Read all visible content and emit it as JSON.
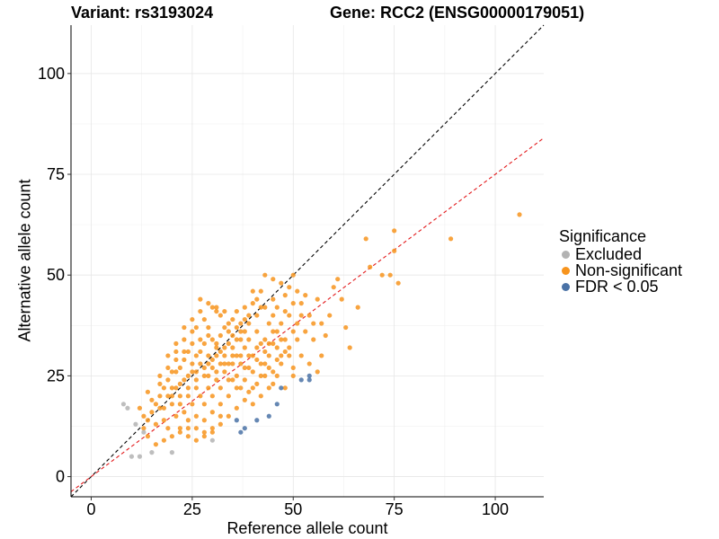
{
  "header": {
    "variant": "Variant: rs3193024",
    "gene": "Gene: RCC2 (ENSG00000179051)"
  },
  "legend": {
    "title": "Significance",
    "items": [
      {
        "label": "Excluded",
        "color": "#b3b3b3"
      },
      {
        "label": "Non-significant",
        "color": "#f7941d"
      },
      {
        "label": "FDR < 0.05",
        "color": "#4a72a6"
      }
    ]
  },
  "chart_data": {
    "type": "scatter",
    "xlabel": "Reference allele count",
    "ylabel": "Alternative allele count",
    "xlim": [
      -5,
      112
    ],
    "ylim": [
      -5,
      112
    ],
    "xticks": [
      0,
      25,
      50,
      75,
      100
    ],
    "yticks": [
      0,
      25,
      50,
      75,
      100
    ],
    "grid": true,
    "legend_position": "right",
    "reference_lines": [
      {
        "kind": "identity",
        "slope": 1,
        "intercept": 0,
        "color": "#000000",
        "style": "dashed"
      },
      {
        "kind": "fit",
        "slope": 0.75,
        "intercept": 0,
        "color": "#e31a1c",
        "style": "dashed"
      }
    ],
    "series": [
      {
        "name": "Excluded",
        "color": "#b3b3b3",
        "points": [
          [
            8,
            18
          ],
          [
            9,
            17
          ],
          [
            10,
            5
          ],
          [
            12,
            5
          ],
          [
            15,
            6
          ],
          [
            20,
            6
          ],
          [
            30,
            9
          ],
          [
            13,
            11
          ],
          [
            11,
            13
          ]
        ]
      },
      {
        "name": "FDR < 0.05",
        "color": "#4a72a6",
        "points": [
          [
            36,
            14
          ],
          [
            37,
            11
          ],
          [
            38,
            12
          ],
          [
            41,
            14
          ],
          [
            44,
            15
          ],
          [
            46,
            18
          ],
          [
            52,
            24
          ],
          [
            54,
            24
          ],
          [
            54,
            25
          ],
          [
            47,
            22
          ]
        ]
      },
      {
        "name": "Non-significant",
        "color": "#f7941d",
        "points": [
          [
            106,
            65
          ],
          [
            89,
            59
          ],
          [
            75,
            61
          ],
          [
            75,
            56
          ],
          [
            76,
            48
          ],
          [
            74,
            50
          ],
          [
            72,
            50
          ],
          [
            69,
            52
          ],
          [
            68,
            59
          ],
          [
            66,
            42
          ],
          [
            61,
            49
          ],
          [
            60,
            47
          ],
          [
            59,
            40
          ],
          [
            58,
            35
          ],
          [
            57,
            30
          ],
          [
            62,
            44
          ],
          [
            63,
            37
          ],
          [
            64,
            32
          ],
          [
            56,
            44
          ],
          [
            55,
            38
          ],
          [
            54,
            40
          ],
          [
            53,
            45
          ],
          [
            52,
            43
          ],
          [
            51,
            46
          ],
          [
            50,
            50
          ],
          [
            49,
            47
          ],
          [
            48,
            45
          ],
          [
            47,
            48
          ],
          [
            46,
            42
          ],
          [
            45,
            44
          ],
          [
            44,
            38
          ],
          [
            43,
            50
          ],
          [
            42,
            42
          ],
          [
            41,
            44
          ],
          [
            40,
            46
          ],
          [
            39,
            40
          ],
          [
            38,
            42
          ],
          [
            37,
            38
          ],
          [
            36,
            34
          ],
          [
            35,
            39
          ],
          [
            34,
            36
          ],
          [
            33,
            41
          ],
          [
            32,
            35
          ],
          [
            31,
            42
          ],
          [
            30,
            34
          ],
          [
            29,
            37
          ],
          [
            28,
            33
          ],
          [
            27,
            44
          ],
          [
            26,
            30
          ],
          [
            25,
            36
          ],
          [
            24,
            31
          ],
          [
            23,
            34
          ],
          [
            22,
            27
          ],
          [
            21,
            29
          ],
          [
            20,
            26
          ],
          [
            19,
            24
          ],
          [
            18,
            22
          ],
          [
            17,
            20
          ],
          [
            16,
            18
          ],
          [
            15,
            16
          ],
          [
            14,
            14
          ],
          [
            13,
            12
          ],
          [
            12,
            17
          ],
          [
            14,
            21
          ],
          [
            16,
            13
          ],
          [
            18,
            17
          ],
          [
            19,
            12
          ],
          [
            21,
            15
          ],
          [
            22,
            11
          ],
          [
            24,
            10
          ],
          [
            26,
            12
          ],
          [
            28,
            14
          ],
          [
            30,
            16
          ],
          [
            32,
            18
          ],
          [
            34,
            20
          ],
          [
            36,
            22
          ],
          [
            38,
            24
          ],
          [
            40,
            26
          ],
          [
            42,
            28
          ],
          [
            44,
            30
          ],
          [
            46,
            32
          ],
          [
            48,
            34
          ],
          [
            50,
            36
          ],
          [
            52,
            30
          ],
          [
            54,
            28
          ],
          [
            56,
            26
          ],
          [
            50,
            25
          ],
          [
            48,
            22
          ],
          [
            46,
            25
          ],
          [
            44,
            22
          ],
          [
            42,
            20
          ],
          [
            40,
            18
          ],
          [
            38,
            19
          ],
          [
            36,
            17
          ],
          [
            34,
            15
          ],
          [
            32,
            13
          ],
          [
            30,
            12
          ],
          [
            28,
            11
          ],
          [
            26,
            15
          ],
          [
            24,
            14
          ],
          [
            22,
            18
          ],
          [
            20,
            20
          ],
          [
            18,
            14
          ],
          [
            17,
            25
          ],
          [
            19,
            27
          ],
          [
            21,
            31
          ],
          [
            23,
            29
          ],
          [
            25,
            33
          ],
          [
            27,
            31
          ],
          [
            29,
            35
          ],
          [
            31,
            33
          ],
          [
            33,
            37
          ],
          [
            35,
            35
          ],
          [
            37,
            36
          ],
          [
            39,
            38
          ],
          [
            41,
            36
          ],
          [
            43,
            34
          ],
          [
            45,
            36
          ],
          [
            47,
            38
          ],
          [
            49,
            40
          ],
          [
            51,
            38
          ],
          [
            53,
            36
          ],
          [
            55,
            34
          ],
          [
            57,
            38
          ],
          [
            41,
            40
          ],
          [
            39,
            34
          ],
          [
            37,
            30
          ],
          [
            35,
            28
          ],
          [
            33,
            26
          ],
          [
            31,
            24
          ],
          [
            29,
            22
          ],
          [
            27,
            20
          ],
          [
            25,
            18
          ],
          [
            23,
            16
          ],
          [
            21,
            22
          ],
          [
            23,
            24
          ],
          [
            25,
            26
          ],
          [
            27,
            28
          ],
          [
            29,
            30
          ],
          [
            31,
            32
          ],
          [
            33,
            30
          ],
          [
            35,
            32
          ],
          [
            37,
            34
          ],
          [
            39,
            30
          ],
          [
            41,
            32
          ],
          [
            43,
            28
          ],
          [
            45,
            26
          ],
          [
            47,
            28
          ],
          [
            49,
            30
          ],
          [
            43,
            42
          ],
          [
            45,
            40
          ],
          [
            47,
            34
          ],
          [
            49,
            32
          ],
          [
            51,
            34
          ],
          [
            40,
            22
          ],
          [
            38,
            27
          ],
          [
            36,
            25
          ],
          [
            34,
            24
          ],
          [
            32,
            22
          ],
          [
            30,
            20
          ],
          [
            28,
            18
          ],
          [
            26,
            22
          ],
          [
            24,
            20
          ],
          [
            22,
            23
          ],
          [
            20,
            18
          ],
          [
            34,
            28
          ],
          [
            32,
            28
          ],
          [
            30,
            27
          ],
          [
            28,
            25
          ],
          [
            26,
            24
          ],
          [
            24,
            25
          ],
          [
            36,
            30
          ],
          [
            38,
            32
          ],
          [
            40,
            30
          ],
          [
            42,
            33
          ],
          [
            44,
            33
          ],
          [
            46,
            36
          ],
          [
            48,
            41
          ],
          [
            50,
            43
          ],
          [
            52,
            40
          ],
          [
            42,
            25
          ],
          [
            44,
            27
          ],
          [
            46,
            29
          ],
          [
            48,
            31
          ],
          [
            50,
            27
          ],
          [
            38,
            36
          ],
          [
            36,
            37
          ],
          [
            34,
            33
          ],
          [
            32,
            31
          ],
          [
            30,
            29
          ],
          [
            28,
            27
          ],
          [
            26,
            26
          ],
          [
            24,
            22
          ],
          [
            22,
            20
          ],
          [
            20,
            22
          ],
          [
            29,
            25
          ],
          [
            31,
            26
          ],
          [
            33,
            28
          ],
          [
            35,
            30
          ],
          [
            37,
            28
          ],
          [
            39,
            27
          ],
          [
            41,
            29
          ],
          [
            43,
            31
          ],
          [
            45,
            33
          ],
          [
            47,
            30
          ],
          [
            26,
            37
          ],
          [
            28,
            39
          ],
          [
            30,
            42
          ],
          [
            32,
            40
          ],
          [
            34,
            38
          ],
          [
            36,
            41
          ],
          [
            38,
            39
          ],
          [
            40,
            43
          ],
          [
            42,
            46
          ],
          [
            45,
            49
          ],
          [
            25,
            28
          ],
          [
            23,
            31
          ],
          [
            21,
            26
          ],
          [
            19,
            20
          ],
          [
            17,
            17
          ],
          [
            27,
            34
          ],
          [
            29,
            28
          ],
          [
            31,
            30
          ],
          [
            33,
            32
          ],
          [
            35,
            24
          ],
          [
            37,
            22
          ],
          [
            39,
            21
          ],
          [
            41,
            23
          ],
          [
            43,
            25
          ],
          [
            45,
            23
          ],
          [
            14,
            10
          ],
          [
            16,
            8
          ],
          [
            18,
            9
          ],
          [
            20,
            10
          ],
          [
            22,
            12
          ],
          [
            24,
            12
          ],
          [
            26,
            9
          ],
          [
            28,
            10
          ],
          [
            30,
            11
          ],
          [
            32,
            15
          ],
          [
            13,
            15
          ],
          [
            15,
            19
          ],
          [
            17,
            23
          ],
          [
            19,
            30
          ],
          [
            21,
            33
          ],
          [
            23,
            37
          ],
          [
            25,
            39
          ],
          [
            27,
            41
          ],
          [
            29,
            43
          ],
          [
            31,
            41
          ]
        ]
      }
    ]
  }
}
